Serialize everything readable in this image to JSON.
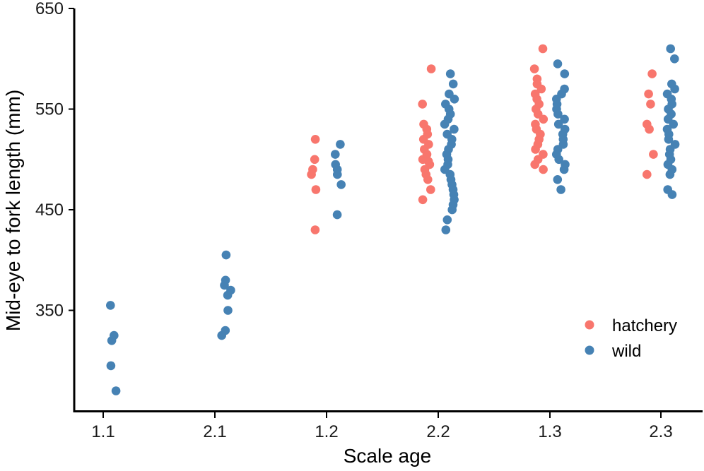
{
  "chart_data": {
    "type": "scatter",
    "title": "",
    "xlabel": "Scale age",
    "ylabel": "Mid-eye to fork length (mm)",
    "categories": [
      "1.1",
      "2.1",
      "1.2",
      "2.2",
      "1.3",
      "2.3"
    ],
    "ylim": [
      250,
      650
    ],
    "yticks": [
      350,
      450,
      550,
      650
    ],
    "grid": false,
    "legend_position": "bottom-right",
    "colors": {
      "hatchery": "#F8766D",
      "wild": "#4682B4"
    },
    "series": [
      {
        "name": "hatchery",
        "points": {
          "1.2": [
            430,
            470,
            485,
            490,
            500,
            520
          ],
          "2.2": [
            460,
            470,
            480,
            485,
            490,
            495,
            498,
            500,
            505,
            510,
            515,
            520,
            525,
            530,
            535,
            555,
            590
          ],
          "1.3": [
            490,
            495,
            500,
            505,
            510,
            515,
            520,
            525,
            530,
            535,
            540,
            545,
            550,
            555,
            560,
            565,
            570,
            575,
            580,
            590,
            610
          ],
          "2.3": [
            485,
            505,
            530,
            535,
            555,
            565,
            585
          ]
        }
      },
      {
        "name": "wild",
        "points": {
          "1.1": [
            270,
            295,
            320,
            325,
            355
          ],
          "2.1": [
            325,
            330,
            350,
            365,
            370,
            375,
            380,
            405
          ],
          "1.2": [
            445,
            475,
            485,
            490,
            495,
            505,
            515
          ],
          "2.2": [
            430,
            440,
            450,
            455,
            460,
            465,
            470,
            475,
            480,
            485,
            490,
            495,
            500,
            505,
            510,
            515,
            520,
            525,
            530,
            535,
            540,
            545,
            550,
            555,
            560,
            565,
            575,
            585
          ],
          "1.3": [
            470,
            480,
            490,
            495,
            500,
            505,
            510,
            515,
            520,
            525,
            530,
            535,
            540,
            545,
            550,
            555,
            560,
            565,
            570,
            585,
            595
          ],
          "2.3": [
            465,
            470,
            485,
            490,
            495,
            500,
            505,
            510,
            515,
            520,
            525,
            530,
            535,
            540,
            545,
            550,
            555,
            560,
            565,
            570,
            575,
            600,
            610
          ]
        }
      }
    ]
  }
}
